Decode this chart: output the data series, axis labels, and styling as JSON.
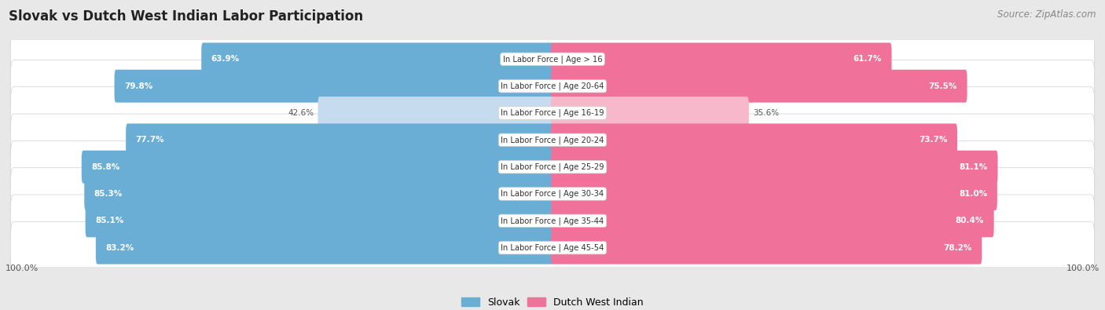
{
  "title": "Slovak vs Dutch West Indian Labor Participation",
  "source": "Source: ZipAtlas.com",
  "categories": [
    "In Labor Force | Age > 16",
    "In Labor Force | Age 20-64",
    "In Labor Force | Age 16-19",
    "In Labor Force | Age 20-24",
    "In Labor Force | Age 25-29",
    "In Labor Force | Age 30-34",
    "In Labor Force | Age 35-44",
    "In Labor Force | Age 45-54"
  ],
  "slovak_values": [
    63.9,
    79.8,
    42.6,
    77.7,
    85.8,
    85.3,
    85.1,
    83.2
  ],
  "dutch_values": [
    61.7,
    75.5,
    35.6,
    73.7,
    81.1,
    81.0,
    80.4,
    78.2
  ],
  "slovak_color_full": "#6aaed6",
  "slovak_color_light": "#c6dcee",
  "dutch_color_full": "#f0719a",
  "dutch_color_light": "#f7b8cc",
  "bg_color": "#e8e8e8",
  "row_bg_color": "#f0f0f0",
  "max_value": 100.0,
  "bar_height": 0.62,
  "legend_slovak": "Slovak",
  "legend_dutch": "Dutch West Indian",
  "threshold": 50.0
}
